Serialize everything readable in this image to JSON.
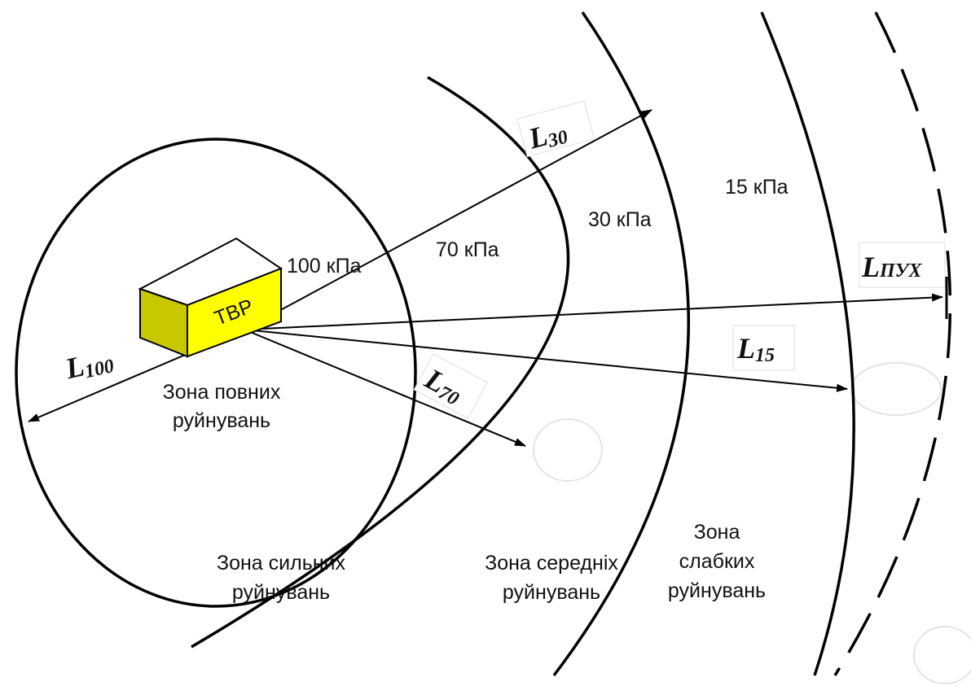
{
  "source": "ТВР",
  "pressures": [
    "100 кПа",
    "70 кПа",
    "30 кПа",
    "15 кПа"
  ],
  "distances": [
    {
      "symbol": "L",
      "sub": "100"
    },
    {
      "symbol": "L",
      "sub": "30"
    },
    {
      "symbol": "L",
      "sub": "70"
    },
    {
      "symbol": "L",
      "sub": "15"
    },
    {
      "symbol": "L",
      "sub": "ПУХ"
    }
  ],
  "zones": [
    [
      "Зона повних",
      "руйнувань"
    ],
    [
      "Зона сильних",
      "руйнувань"
    ],
    [
      "Зона середніх",
      "руйнувань"
    ],
    [
      "Зона",
      "слабких",
      "руйнувань"
    ]
  ]
}
